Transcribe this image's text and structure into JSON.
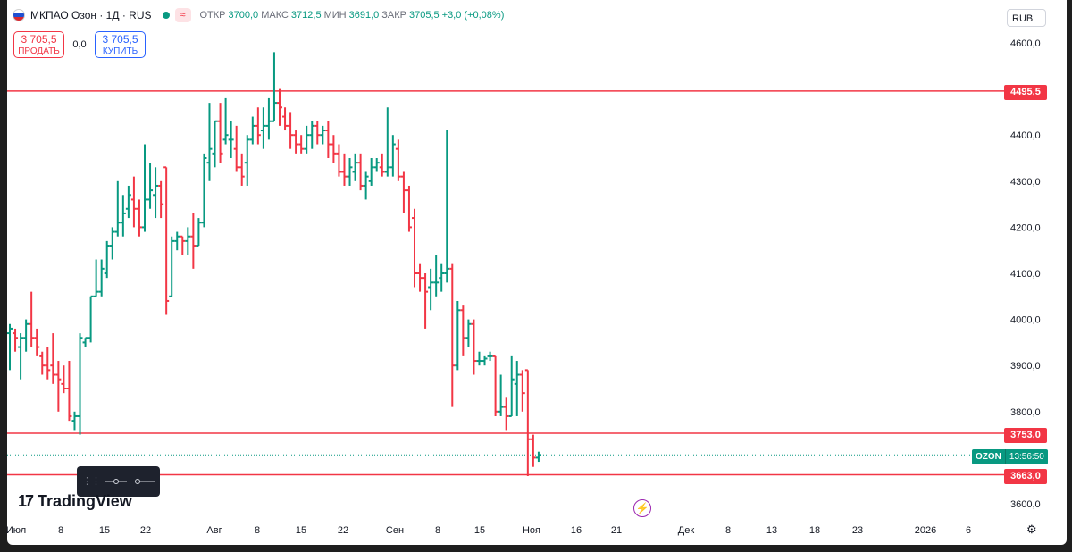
{
  "symbol": {
    "title": "МКПАО Озон · 1Д · RUS",
    "approx_badge": "≈"
  },
  "ohlc": {
    "open_label": "ОТКР",
    "open": "3700,0",
    "high_label": "МАКС",
    "high": "3712,5",
    "low_label": "МИН",
    "low": "3691,0",
    "close_label": "ЗАКР",
    "close": "3705,5",
    "change": "+3,0 (+0,08%)"
  },
  "trade": {
    "sell_price": "3 705,5",
    "sell_label": "ПРОДАТЬ",
    "spread": "0,0",
    "buy_price": "3 705,5",
    "buy_label": "КУПИТЬ"
  },
  "currency": "RUB",
  "logo_text": "TradingView",
  "current_price_tag": {
    "symbol": "OZON",
    "countdown": "13:56:50"
  },
  "price_lines": [
    {
      "label": "4495,5",
      "value": 4495.5
    },
    {
      "label": "3753,0",
      "value": 3753.0
    },
    {
      "label": "3663,0",
      "value": 3663.0
    }
  ],
  "colors": {
    "up": "#089981",
    "down": "#f23645",
    "line": "#f23645",
    "accent": "#2962ff"
  },
  "chart_data": {
    "type": "ohlc",
    "y_axis": {
      "ticks": [
        "4600,0",
        "4400,0",
        "4300,0",
        "4200,0",
        "4100,0",
        "4000,0",
        "3900,0",
        "3800,0",
        "3600,0"
      ],
      "ylim": [
        3580,
        4640
      ],
      "scale": "linear",
      "grid": false
    },
    "x_axis": {
      "ticks": [
        "Июл",
        "8",
        "15",
        "22",
        "Авг",
        "8",
        "15",
        "22",
        "Сен",
        "8",
        "15",
        "Ноя",
        "16",
        "21",
        "Дек",
        "8",
        "13",
        "18",
        "23",
        "2026",
        "6"
      ]
    },
    "bars": [
      {
        "o": 3970,
        "h": 3990,
        "l": 3890,
        "c": 3980
      },
      {
        "o": 3970,
        "h": 3980,
        "l": 3930,
        "c": 3960
      },
      {
        "o": 3940,
        "h": 3970,
        "l": 3870,
        "c": 3960
      },
      {
        "o": 3960,
        "h": 4000,
        "l": 3930,
        "c": 3990
      },
      {
        "o": 3990,
        "h": 4060,
        "l": 3940,
        "c": 3960
      },
      {
        "o": 3960,
        "h": 3980,
        "l": 3920,
        "c": 3940
      },
      {
        "o": 3920,
        "h": 3930,
        "l": 3880,
        "c": 3900
      },
      {
        "o": 3900,
        "h": 3940,
        "l": 3870,
        "c": 3890
      },
      {
        "o": 3900,
        "h": 3970,
        "l": 3860,
        "c": 3880
      },
      {
        "o": 3880,
        "h": 3910,
        "l": 3800,
        "c": 3870
      },
      {
        "o": 3860,
        "h": 3900,
        "l": 3840,
        "c": 3850
      },
      {
        "o": 3850,
        "h": 3910,
        "l": 3780,
        "c": 3790
      },
      {
        "o": 3780,
        "h": 3800,
        "l": 3760,
        "c": 3790
      },
      {
        "o": 3790,
        "h": 3970,
        "l": 3750,
        "c": 3960
      },
      {
        "o": 3950,
        "h": 3960,
        "l": 3940,
        "c": 3960
      },
      {
        "o": 3960,
        "h": 4050,
        "l": 3950,
        "c": 4050
      },
      {
        "o": 4050,
        "h": 4130,
        "l": 4050,
        "c": 4060
      },
      {
        "o": 4060,
        "h": 4130,
        "l": 4050,
        "c": 4110
      },
      {
        "o": 4100,
        "h": 4170,
        "l": 4090,
        "c": 4160
      },
      {
        "o": 4160,
        "h": 4200,
        "l": 4130,
        "c": 4190
      },
      {
        "o": 4190,
        "h": 4300,
        "l": 4180,
        "c": 4210
      },
      {
        "o": 4210,
        "h": 4270,
        "l": 4180,
        "c": 4230
      },
      {
        "o": 4240,
        "h": 4290,
        "l": 4220,
        "c": 4270
      },
      {
        "o": 4260,
        "h": 4310,
        "l": 4200,
        "c": 4240
      },
      {
        "o": 4240,
        "h": 4260,
        "l": 4180,
        "c": 4200
      },
      {
        "o": 4200,
        "h": 4380,
        "l": 4190,
        "c": 4260
      },
      {
        "o": 4260,
        "h": 4340,
        "l": 4240,
        "c": 4280
      },
      {
        "o": 4270,
        "h": 4330,
        "l": 4220,
        "c": 4290
      },
      {
        "o": 4290,
        "h": 4300,
        "l": 4220,
        "c": 4250
      },
      {
        "o": 4330,
        "h": 4330,
        "l": 4010,
        "c": 4040
      },
      {
        "o": 4050,
        "h": 4180,
        "l": 4050,
        "c": 4170
      },
      {
        "o": 4170,
        "h": 4190,
        "l": 4150,
        "c": 4180
      },
      {
        "o": 4180,
        "h": 4180,
        "l": 4140,
        "c": 4170
      },
      {
        "o": 4170,
        "h": 4200,
        "l": 4140,
        "c": 4180
      },
      {
        "o": 4180,
        "h": 4230,
        "l": 4110,
        "c": 4160
      },
      {
        "o": 4160,
        "h": 4220,
        "l": 4160,
        "c": 4210
      },
      {
        "o": 4210,
        "h": 4360,
        "l": 4200,
        "c": 4350
      },
      {
        "o": 4340,
        "h": 4470,
        "l": 4300,
        "c": 4370
      },
      {
        "o": 4360,
        "h": 4430,
        "l": 4330,
        "c": 4430
      },
      {
        "o": 4430,
        "h": 4470,
        "l": 4340,
        "c": 4360
      },
      {
        "o": 4390,
        "h": 4480,
        "l": 4380,
        "c": 4400
      },
      {
        "o": 4390,
        "h": 4430,
        "l": 4350,
        "c": 4390
      },
      {
        "o": 4370,
        "h": 4420,
        "l": 4320,
        "c": 4330
      },
      {
        "o": 4330,
        "h": 4360,
        "l": 4290,
        "c": 4310
      },
      {
        "o": 4340,
        "h": 4400,
        "l": 4290,
        "c": 4390
      },
      {
        "o": 4390,
        "h": 4440,
        "l": 4380,
        "c": 4420
      },
      {
        "o": 4420,
        "h": 4460,
        "l": 4380,
        "c": 4400
      },
      {
        "o": 4410,
        "h": 4460,
        "l": 4370,
        "c": 4420
      },
      {
        "o": 4420,
        "h": 4480,
        "l": 4390,
        "c": 4430
      },
      {
        "o": 4430,
        "h": 4580,
        "l": 4430,
        "c": 4470
      },
      {
        "o": 4470,
        "h": 4500,
        "l": 4420,
        "c": 4460
      },
      {
        "o": 4440,
        "h": 4460,
        "l": 4410,
        "c": 4420
      },
      {
        "o": 4420,
        "h": 4450,
        "l": 4370,
        "c": 4400
      },
      {
        "o": 4400,
        "h": 4410,
        "l": 4360,
        "c": 4380
      },
      {
        "o": 4380,
        "h": 4400,
        "l": 4360,
        "c": 4370
      },
      {
        "o": 4370,
        "h": 4420,
        "l": 4360,
        "c": 4400
      },
      {
        "o": 4400,
        "h": 4430,
        "l": 4370,
        "c": 4420
      },
      {
        "o": 4420,
        "h": 4430,
        "l": 4380,
        "c": 4400
      },
      {
        "o": 4400,
        "h": 4420,
        "l": 4380,
        "c": 4410
      },
      {
        "o": 4410,
        "h": 4430,
        "l": 4350,
        "c": 4380
      },
      {
        "o": 4380,
        "h": 4400,
        "l": 4340,
        "c": 4360
      },
      {
        "o": 4360,
        "h": 4380,
        "l": 4310,
        "c": 4320
      },
      {
        "o": 4320,
        "h": 4360,
        "l": 4290,
        "c": 4310
      },
      {
        "o": 4310,
        "h": 4350,
        "l": 4290,
        "c": 4330
      },
      {
        "o": 4320,
        "h": 4360,
        "l": 4300,
        "c": 4340
      },
      {
        "o": 4340,
        "h": 4360,
        "l": 4280,
        "c": 4290
      },
      {
        "o": 4290,
        "h": 4320,
        "l": 4260,
        "c": 4310
      },
      {
        "o": 4300,
        "h": 4350,
        "l": 4290,
        "c": 4330
      },
      {
        "o": 4330,
        "h": 4350,
        "l": 4320,
        "c": 4340
      },
      {
        "o": 4330,
        "h": 4360,
        "l": 4310,
        "c": 4320
      },
      {
        "o": 4320,
        "h": 4460,
        "l": 4310,
        "c": 4330
      },
      {
        "o": 4330,
        "h": 4400,
        "l": 4310,
        "c": 4380
      },
      {
        "o": 4370,
        "h": 4390,
        "l": 4300,
        "c": 4310
      },
      {
        "o": 4310,
        "h": 4320,
        "l": 4230,
        "c": 4280
      },
      {
        "o": 4280,
        "h": 4290,
        "l": 4190,
        "c": 4200
      },
      {
        "o": 4220,
        "h": 4240,
        "l": 4070,
        "c": 4100
      },
      {
        "o": 4100,
        "h": 4120,
        "l": 4060,
        "c": 4090
      },
      {
        "o": 4090,
        "h": 4100,
        "l": 3980,
        "c": 4060
      },
      {
        "o": 4070,
        "h": 4110,
        "l": 4020,
        "c": 4080
      },
      {
        "o": 4080,
        "h": 4140,
        "l": 4050,
        "c": 4080
      },
      {
        "o": 4090,
        "h": 4120,
        "l": 4060,
        "c": 4100
      },
      {
        "o": 4100,
        "h": 4410,
        "l": 4080,
        "c": 4110
      },
      {
        "o": 4110,
        "h": 4120,
        "l": 3810,
        "c": 3900
      },
      {
        "o": 3900,
        "h": 4040,
        "l": 3890,
        "c": 4020
      },
      {
        "o": 4020,
        "h": 4030,
        "l": 3920,
        "c": 3960
      },
      {
        "o": 3960,
        "h": 4000,
        "l": 3940,
        "c": 3990
      },
      {
        "o": 3990,
        "h": 4000,
        "l": 3880,
        "c": 3910
      },
      {
        "o": 3910,
        "h": 3930,
        "l": 3900,
        "c": 3910
      },
      {
        "o": 3910,
        "h": 3920,
        "l": 3900,
        "c": 3915
      },
      {
        "o": 3920,
        "h": 3930,
        "l": 3910,
        "c": 3920
      },
      {
        "o": 3920,
        "h": 3920,
        "l": 3790,
        "c": 3800
      },
      {
        "o": 3800,
        "h": 3880,
        "l": 3790,
        "c": 3810
      },
      {
        "o": 3810,
        "h": 3830,
        "l": 3760,
        "c": 3790
      },
      {
        "o": 3790,
        "h": 3920,
        "l": 3790,
        "c": 3870
      },
      {
        "o": 3860,
        "h": 3910,
        "l": 3790,
        "c": 3880
      },
      {
        "o": 3880,
        "h": 3890,
        "l": 3800,
        "c": 3840
      },
      {
        "o": 3890,
        "h": 3890,
        "l": 3660,
        "c": 3740
      },
      {
        "o": 3740,
        "h": 3750,
        "l": 3680,
        "c": 3700
      },
      {
        "o": 3700,
        "h": 3713,
        "l": 3691,
        "c": 3706
      }
    ]
  }
}
